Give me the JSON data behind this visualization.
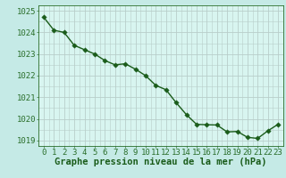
{
  "x": [
    0,
    1,
    2,
    3,
    4,
    5,
    6,
    7,
    8,
    9,
    10,
    11,
    12,
    13,
    14,
    15,
    16,
    17,
    18,
    19,
    20,
    21,
    22,
    23
  ],
  "y": [
    1024.7,
    1024.1,
    1024.0,
    1023.4,
    1023.2,
    1023.0,
    1022.7,
    1022.5,
    1022.55,
    1022.3,
    1022.0,
    1021.55,
    1021.35,
    1020.75,
    1020.2,
    1019.75,
    1019.73,
    1019.72,
    1019.4,
    1019.42,
    1019.15,
    1019.1,
    1019.45,
    1019.75
  ],
  "line_color": "#1a5c1a",
  "marker_color": "#1a5c1a",
  "bg_color": "#c5eae6",
  "plot_bg_color": "#d8f5f0",
  "grid_color": "#b8ceca",
  "ylim": [
    1018.75,
    1025.25
  ],
  "xlim": [
    -0.5,
    23.5
  ],
  "yticks": [
    1019,
    1020,
    1021,
    1022,
    1023,
    1024,
    1025
  ],
  "xticks": [
    0,
    1,
    2,
    3,
    4,
    5,
    6,
    7,
    8,
    9,
    10,
    11,
    12,
    13,
    14,
    15,
    16,
    17,
    18,
    19,
    20,
    21,
    22,
    23
  ],
  "xlabel": "Graphe pression niveau de la mer (hPa)",
  "tick_color": "#2a6e2a",
  "label_color": "#1a5c1a",
  "font_size_xlabel": 7.5,
  "font_size_ticks": 6.5,
  "marker_size": 2.8,
  "line_width": 1.0
}
